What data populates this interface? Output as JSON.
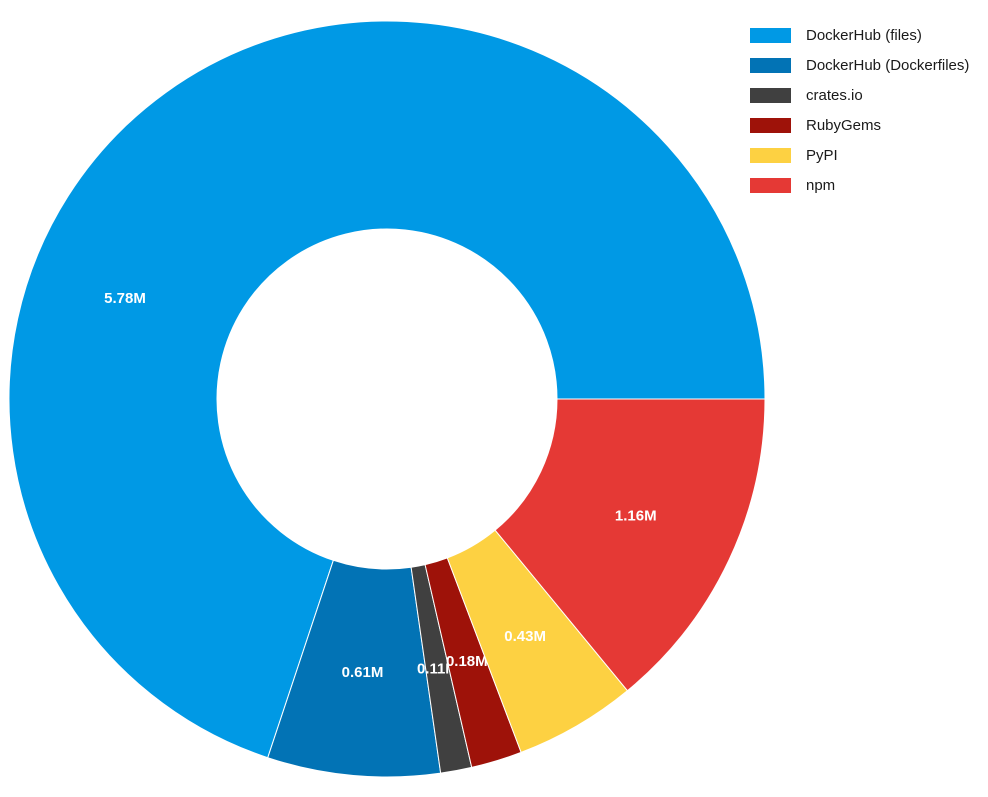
{
  "chart_data": {
    "type": "pie",
    "variant": "donut",
    "start": "3 o'clock, counter-clockwise",
    "slices": [
      {
        "label": "DockerHub (files)",
        "value": 5.78,
        "display": "5.78M",
        "color": "#0099e5"
      },
      {
        "label": "DockerHub (Dockerfiles)",
        "value": 0.61,
        "display": "0.61M",
        "color": "#0273b5"
      },
      {
        "label": "crates.io",
        "value": 0.11,
        "display": "0.11M",
        "color": "#404040"
      },
      {
        "label": "RubyGems",
        "value": 0.18,
        "display": "0.18M",
        "color": "#9e1209"
      },
      {
        "label": "PyPI",
        "value": 0.43,
        "display": "0.43M",
        "color": "#fdd142"
      },
      {
        "label": "npm",
        "value": 1.16,
        "display": "1.16M",
        "color": "#e53935"
      }
    ],
    "legend_position": "top-right"
  }
}
